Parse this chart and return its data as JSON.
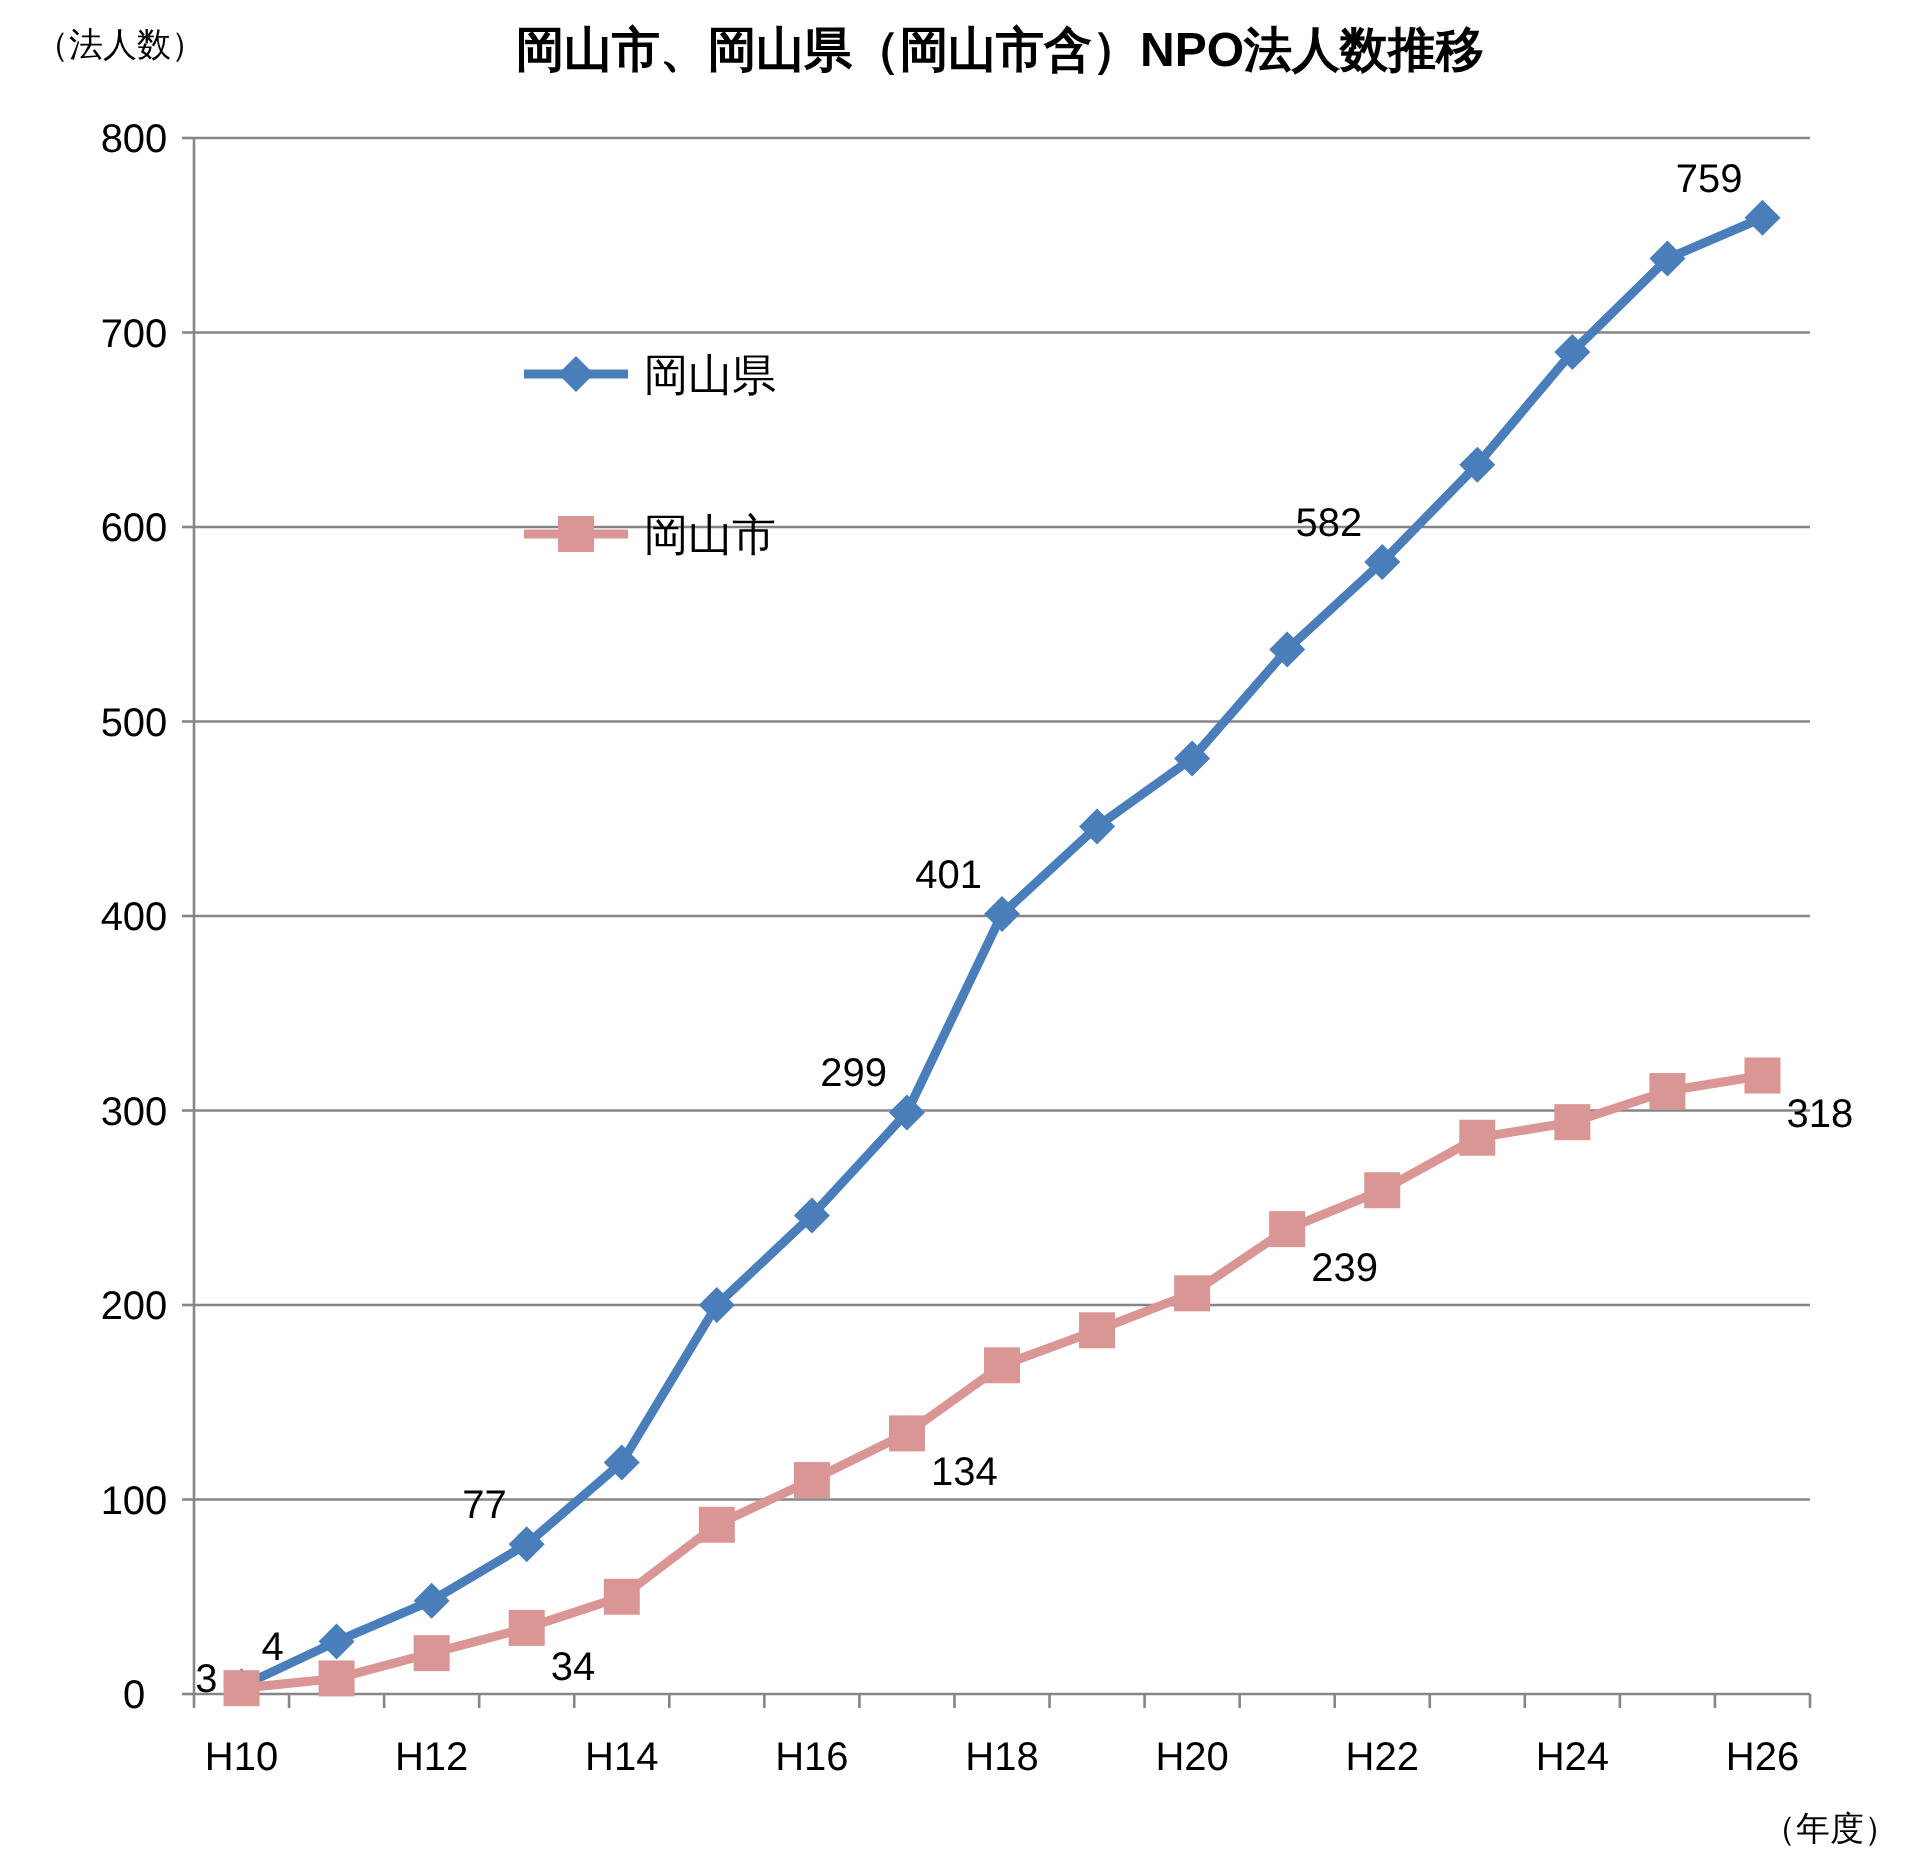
{
  "chart_data": {
    "type": "line",
    "title": "岡山市、岡山県（岡山市含）NPO法人数推移",
    "ylabel": "（法人数）",
    "xlabel": "（年度）",
    "categories": [
      "H10",
      null,
      "H12",
      null,
      "H14",
      null,
      "H16",
      null,
      "H18",
      null,
      "H20",
      null,
      "H22",
      null,
      "H24",
      null,
      "H26"
    ],
    "ylim": [
      0,
      800
    ],
    "yticks": [
      0,
      100,
      200,
      300,
      400,
      500,
      600,
      700,
      800
    ],
    "grid": "y",
    "legend": "top left",
    "series": [
      {
        "name": "岡山県",
        "color": "#4a7ebb",
        "marker": "diamond",
        "values": [
          4,
          27,
          48,
          77,
          119,
          200,
          246,
          299,
          401,
          446,
          481,
          537,
          582,
          632,
          690,
          738,
          759
        ],
        "value_labels": [
          "4",
          null,
          null,
          "77",
          null,
          null,
          null,
          "299",
          "401",
          null,
          null,
          null,
          "582",
          null,
          null,
          null,
          "759"
        ]
      },
      {
        "name": "岡山市",
        "color": "#da9694",
        "marker": "square",
        "values": [
          3,
          8,
          21,
          34,
          50,
          87,
          110,
          134,
          169,
          187,
          206,
          239,
          259,
          286,
          294,
          310,
          318
        ],
        "value_labels": [
          "3",
          null,
          null,
          "34",
          null,
          null,
          null,
          "134",
          null,
          null,
          null,
          "239",
          null,
          null,
          null,
          null,
          "318"
        ]
      }
    ]
  }
}
